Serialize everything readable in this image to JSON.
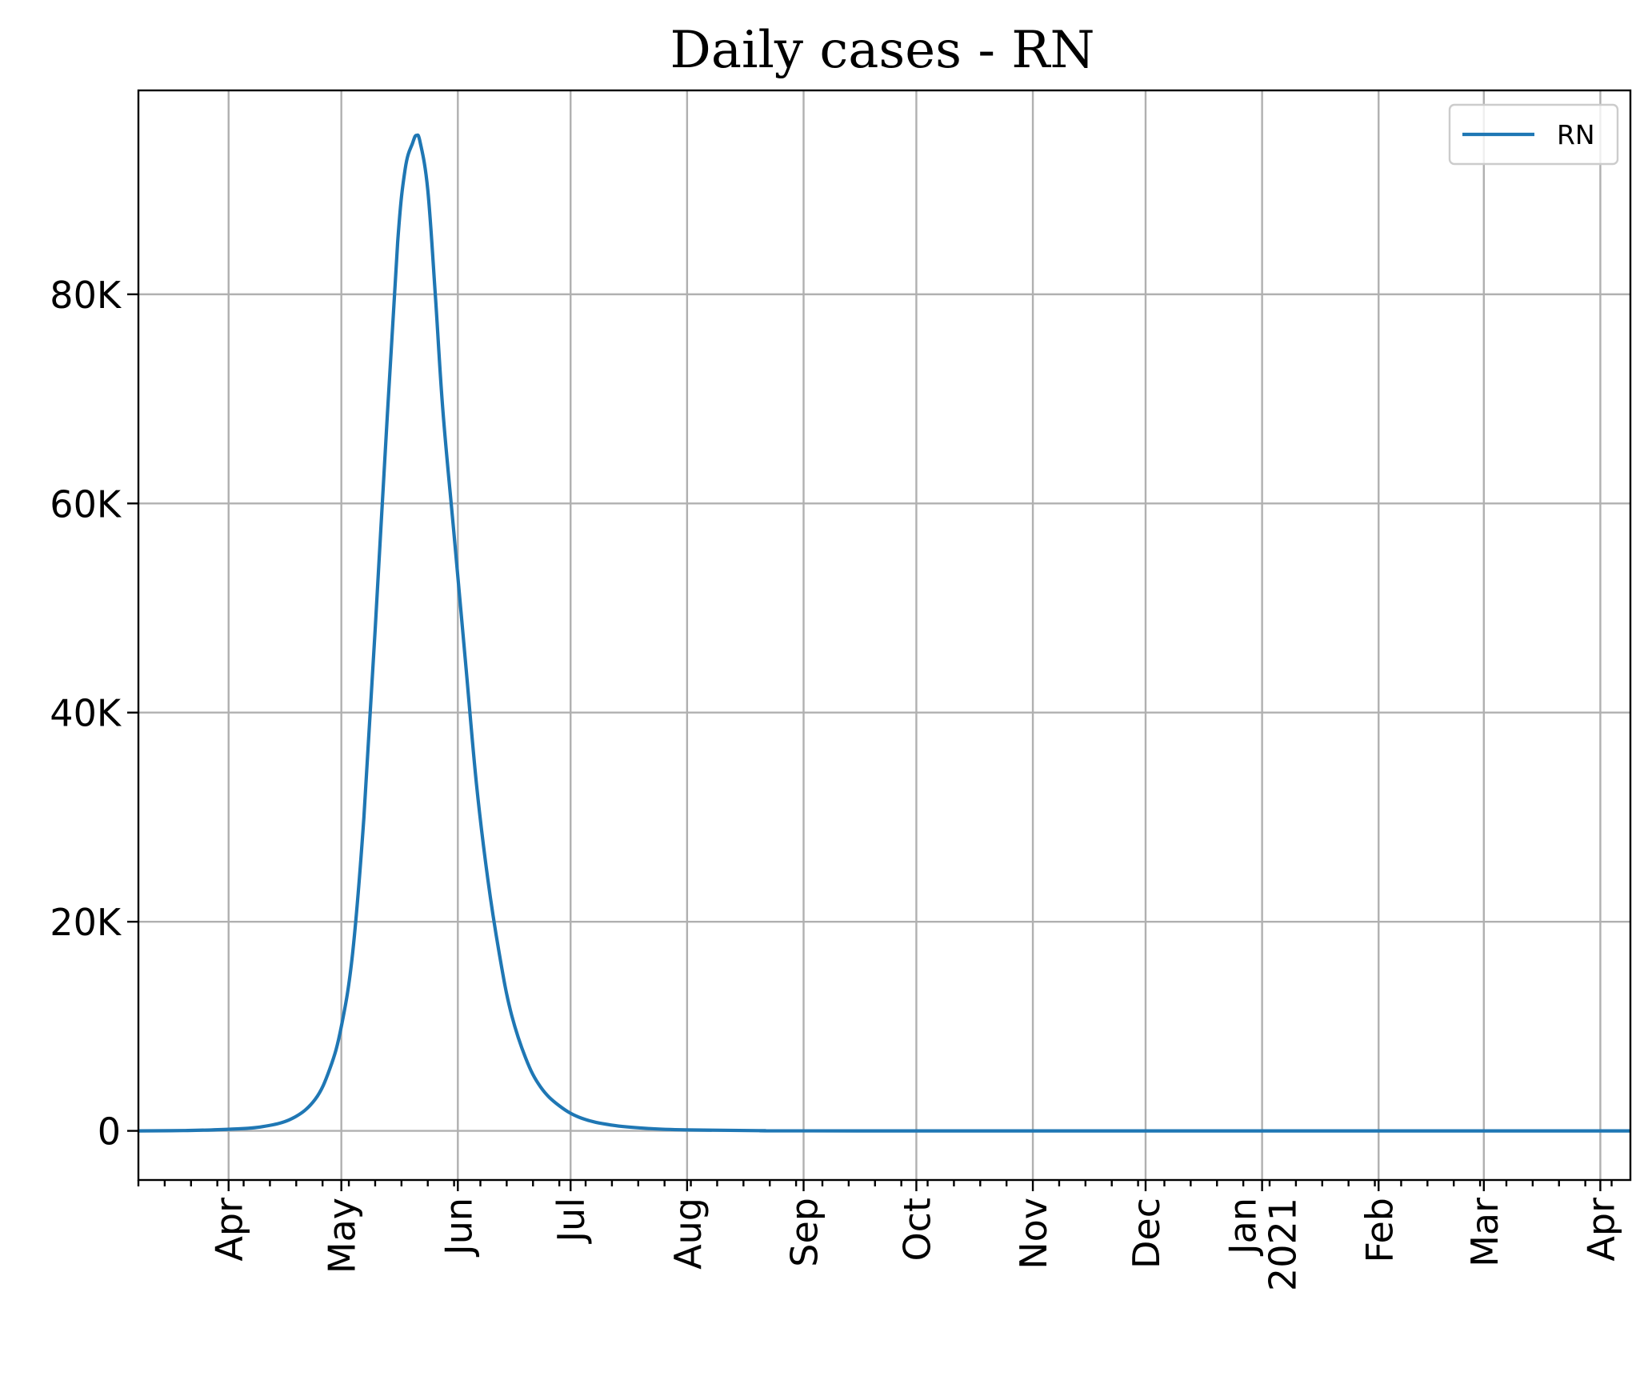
{
  "chart_data": {
    "type": "line",
    "title": "Daily cases - RN",
    "xlabel": "",
    "ylabel": "",
    "x_axis": {
      "kind": "date",
      "range": [
        "2020-03-08",
        "2021-04-09"
      ],
      "major_ticks": [
        {
          "date": "2020-04-01",
          "label": "Apr"
        },
        {
          "date": "2020-05-01",
          "label": "May"
        },
        {
          "date": "2020-06-01",
          "label": "Jun"
        },
        {
          "date": "2020-07-01",
          "label": "Jul"
        },
        {
          "date": "2020-08-01",
          "label": "Aug"
        },
        {
          "date": "2020-09-01",
          "label": "Sep"
        },
        {
          "date": "2020-10-01",
          "label": "Oct"
        },
        {
          "date": "2020-11-01",
          "label": "Nov"
        },
        {
          "date": "2020-12-01",
          "label": "Dec"
        },
        {
          "date": "2021-01-01",
          "label": "Jan\n2021"
        },
        {
          "date": "2021-02-01",
          "label": "Feb"
        },
        {
          "date": "2021-03-01",
          "label": "Mar"
        },
        {
          "date": "2021-04-01",
          "label": "Apr"
        }
      ],
      "minor_ticks": "weekly"
    },
    "y_axis": {
      "range": [
        -4700,
        99500
      ],
      "ticks": [
        {
          "value": 0,
          "label": "0"
        },
        {
          "value": 20000,
          "label": "20K"
        },
        {
          "value": 40000,
          "label": "40K"
        },
        {
          "value": 60000,
          "label": "60K"
        },
        {
          "value": 80000,
          "label": "80K"
        }
      ]
    },
    "grid": true,
    "legend": {
      "position": "top-right",
      "entries": [
        "RN"
      ]
    },
    "series": [
      {
        "name": "RN",
        "color": "#1f77b4",
        "points": [
          [
            "2020-03-08",
            0
          ],
          [
            "2020-03-20",
            30
          ],
          [
            "2020-04-01",
            150
          ],
          [
            "2020-04-10",
            400
          ],
          [
            "2020-04-18",
            1200
          ],
          [
            "2020-04-24",
            3000
          ],
          [
            "2020-04-28",
            6000
          ],
          [
            "2020-05-01",
            10000
          ],
          [
            "2020-05-04",
            17000
          ],
          [
            "2020-05-07",
            30000
          ],
          [
            "2020-05-10",
            48000
          ],
          [
            "2020-05-13",
            67000
          ],
          [
            "2020-05-16",
            85000
          ],
          [
            "2020-05-18",
            92000
          ],
          [
            "2020-05-20",
            94500
          ],
          [
            "2020-05-21",
            95200
          ],
          [
            "2020-05-22",
            94500
          ],
          [
            "2020-05-24",
            90000
          ],
          [
            "2020-05-26",
            80000
          ],
          [
            "2020-05-28",
            69000
          ],
          [
            "2020-05-31",
            57000
          ],
          [
            "2020-06-03",
            45000
          ],
          [
            "2020-06-06",
            33000
          ],
          [
            "2020-06-09",
            24000
          ],
          [
            "2020-06-12",
            17000
          ],
          [
            "2020-06-15",
            11500
          ],
          [
            "2020-06-19",
            7000
          ],
          [
            "2020-06-23",
            4200
          ],
          [
            "2020-06-28",
            2400
          ],
          [
            "2020-07-04",
            1200
          ],
          [
            "2020-07-12",
            550
          ],
          [
            "2020-07-22",
            220
          ],
          [
            "2020-08-01",
            90
          ],
          [
            "2020-08-20",
            20
          ],
          [
            "2020-09-15",
            0
          ],
          [
            "2021-04-09",
            0
          ]
        ]
      }
    ]
  }
}
